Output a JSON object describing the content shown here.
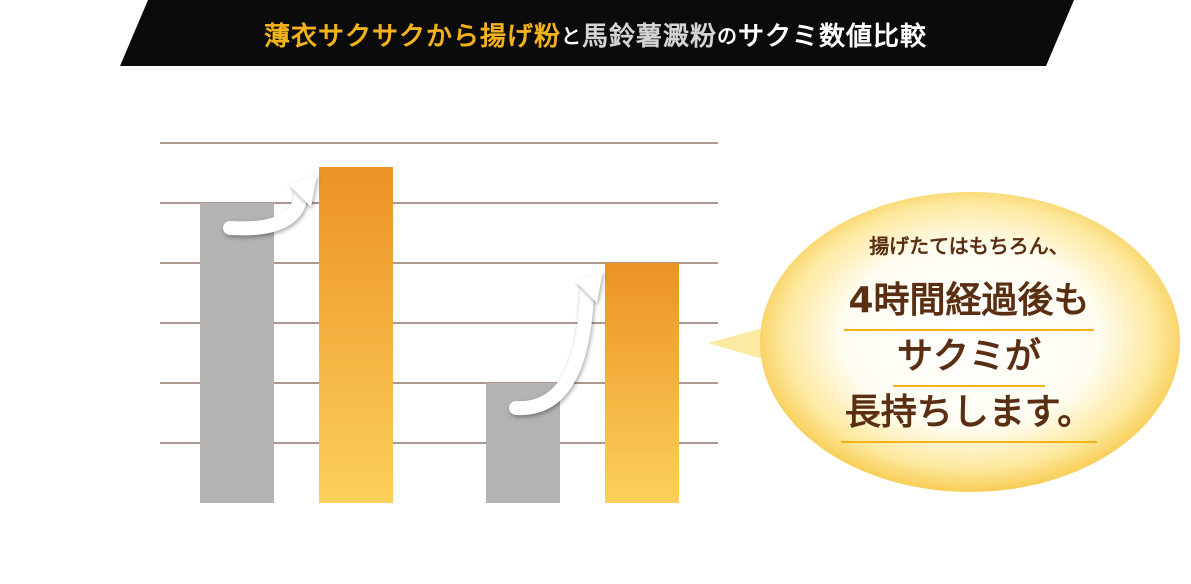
{
  "title": {
    "part1": "薄衣サクサクから揚げ粉",
    "part2": "と",
    "part3": "馬鈴薯澱粉",
    "part4": "の",
    "part5": "サクミ数値比較"
  },
  "colors": {
    "banner_bg": "#0b0b0b",
    "gold": "#f2b21a",
    "gray_bar": "#b3b3b3",
    "orange_top": "#ec9226",
    "orange_bottom": "#fcd05a",
    "grid": "#7a5a4a",
    "bubble_text": "#5a2e12"
  },
  "callout": {
    "lead": "揚げたてはもちろん、",
    "lines": [
      "4時間経過後も",
      "サクミが",
      "長持ちします。"
    ]
  },
  "chart_data": {
    "type": "bar",
    "categories": [
      "",
      ""
    ],
    "series": [
      {
        "values": [
          5,
          2
        ]
      },
      {
        "values": [
          5.6,
          4
        ]
      }
    ],
    "ylim": [
      0,
      6
    ],
    "grid": true,
    "xlabel": "",
    "ylabel": ""
  }
}
